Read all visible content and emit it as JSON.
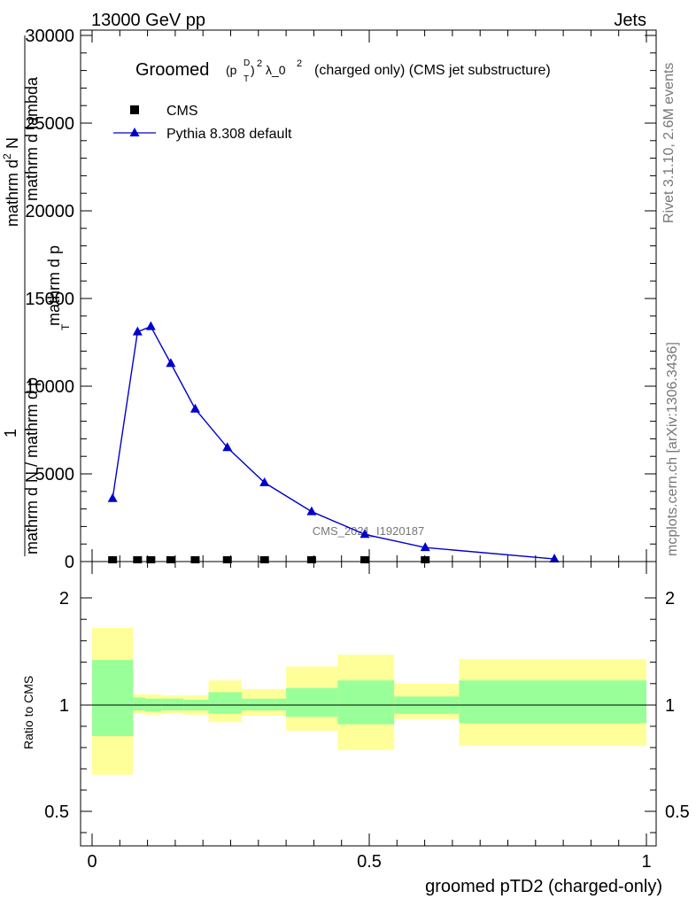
{
  "header": {
    "left": "13000 GeV pp",
    "right": "Jets"
  },
  "side_text": {
    "rivet": "Rivet 3.1.10,  2.6M events",
    "mcplots": "mcplots.cern.ch [arXiv:1306.3436]"
  },
  "watermark": "CMS_2021_I1920187",
  "chart_data": {
    "type": "line",
    "title_main": "Groomed",
    "title_math_p": "(p",
    "title_math_sup_d": "D",
    "title_math_sub_t": "T",
    "title_math_close": ")",
    "title_math_exp": "2",
    "title_lambda": "λ_0",
    "title_lambda_exp": "2",
    "title_rest": "(charged only) (CMS jet substructure)",
    "xlabel": "groomed pTD2 (charged-only)",
    "ylabel_parts": [
      "mathrm d N / mathrm d p",
      "T",
      " mathrm d p",
      "mathrm d lambda",
      "mathrm d",
      "2",
      "N",
      "1"
    ],
    "ratio_ylabel": "Ratio to CMS",
    "xlim": [
      0,
      1
    ],
    "ylim": [
      0,
      30000
    ],
    "yticks": [
      "0",
      "5000",
      "10000",
      "15000",
      "20000",
      "25000",
      "30000"
    ],
    "ytick_values": [
      0,
      5000,
      10000,
      15000,
      20000,
      25000,
      30000
    ],
    "xticks": [
      "0",
      "0.5",
      "1"
    ],
    "xtick_values": [
      0,
      0.5,
      1
    ],
    "ratio_ylim": [
      0.35,
      2.3
    ],
    "ratio_yticks": [
      "0.5",
      "1",
      "2"
    ],
    "ratio_ytick_values": [
      0.5,
      1,
      2
    ],
    "legend": [
      {
        "name": "CMS",
        "marker": "square",
        "color": "#000000"
      },
      {
        "name": "Pythia 8.308 default",
        "marker": "triangle",
        "color": "#0000cc"
      }
    ],
    "series": [
      {
        "name": "CMS",
        "x": [
          0.037,
          0.082,
          0.106,
          0.142,
          0.186,
          0.244,
          0.311,
          0.396,
          0.492,
          0.601,
          0.834
        ],
        "y": [
          0,
          0,
          0,
          0,
          0,
          0,
          0,
          0,
          0,
          0,
          0
        ]
      },
      {
        "name": "Pythia 8.308 default",
        "x": [
          0.037,
          0.082,
          0.106,
          0.142,
          0.186,
          0.244,
          0.311,
          0.396,
          0.492,
          0.601,
          0.834
        ],
        "y": [
          3600,
          13100,
          13400,
          11300,
          8700,
          6500,
          4500,
          2850,
          1550,
          800,
          150
        ]
      }
    ],
    "ratio_bands": [
      {
        "x0": 0.0,
        "x1": 0.074,
        "green": [
          0.71,
          1.42
        ],
        "yellow": [
          0.35,
          1.72
        ]
      },
      {
        "x0": 0.074,
        "x1": 0.096,
        "green": [
          0.95,
          1.07
        ],
        "yellow": [
          0.92,
          1.1
        ]
      },
      {
        "x0": 0.096,
        "x1": 0.125,
        "green": [
          0.94,
          1.06
        ],
        "yellow": [
          0.91,
          1.1
        ]
      },
      {
        "x0": 0.125,
        "x1": 0.165,
        "green": [
          0.95,
          1.06
        ],
        "yellow": [
          0.92,
          1.09
        ]
      },
      {
        "x0": 0.165,
        "x1": 0.21,
        "green": [
          0.95,
          1.05
        ],
        "yellow": [
          0.91,
          1.09
        ]
      },
      {
        "x0": 0.21,
        "x1": 0.27,
        "green": [
          0.92,
          1.12
        ],
        "yellow": [
          0.84,
          1.23
        ]
      },
      {
        "x0": 0.27,
        "x1": 0.35,
        "green": [
          0.95,
          1.06
        ],
        "yellow": [
          0.9,
          1.15
        ]
      },
      {
        "x0": 0.35,
        "x1": 0.443,
        "green": [
          0.89,
          1.16
        ],
        "yellow": [
          0.76,
          1.36
        ]
      },
      {
        "x0": 0.443,
        "x1": 0.545,
        "green": [
          0.82,
          1.23
        ],
        "yellow": [
          0.58,
          1.47
        ]
      },
      {
        "x0": 0.545,
        "x1": 0.662,
        "green": [
          0.92,
          1.08
        ],
        "yellow": [
          0.87,
          1.2
        ]
      },
      {
        "x0": 0.662,
        "x1": 1.0,
        "green": [
          0.83,
          1.23
        ],
        "yellow": [
          0.62,
          1.43
        ]
      }
    ],
    "colors": {
      "mc": "#0000cc",
      "data": "#000000",
      "band_inner": "#99ff99",
      "band_outer": "#ffff99"
    }
  }
}
